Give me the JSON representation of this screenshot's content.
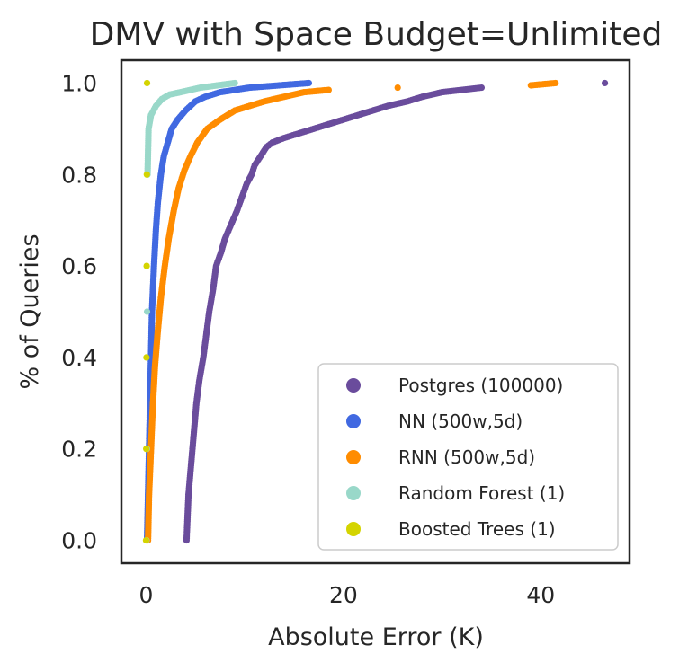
{
  "chart_data": {
    "type": "scatter",
    "title": "DMV with Space Budget=Unlimited",
    "xlabel": "Absolute Error (K)",
    "ylabel": "% of Queries",
    "xlim": [
      -2.5,
      49
    ],
    "ylim": [
      -0.05,
      1.05
    ],
    "x_ticks": [
      0,
      20,
      40
    ],
    "x_tick_labels": [
      "0",
      "20",
      "40"
    ],
    "y_ticks": [
      0.0,
      0.2,
      0.4,
      0.6,
      0.8,
      1.0
    ],
    "y_tick_labels": [
      "0.0",
      "0.2",
      "0.4",
      "0.6",
      "0.8",
      "1.0"
    ],
    "grid": false,
    "legend_position": "lower-right",
    "series": [
      {
        "name": "Postgres (100000)",
        "color": "#6a4c9c",
        "points": [
          [
            4.1,
            0.0
          ],
          [
            4.2,
            0.05
          ],
          [
            4.3,
            0.1
          ],
          [
            4.5,
            0.15
          ],
          [
            4.7,
            0.2
          ],
          [
            4.9,
            0.25
          ],
          [
            5.1,
            0.3
          ],
          [
            5.4,
            0.35
          ],
          [
            5.8,
            0.4
          ],
          [
            6.1,
            0.45
          ],
          [
            6.4,
            0.5
          ],
          [
            6.8,
            0.55
          ],
          [
            7.1,
            0.6
          ],
          [
            7.6,
            0.63
          ],
          [
            8.0,
            0.66
          ],
          [
            8.6,
            0.69
          ],
          [
            9.2,
            0.72
          ],
          [
            9.7,
            0.75
          ],
          [
            10.2,
            0.78
          ],
          [
            10.7,
            0.8
          ],
          [
            11.0,
            0.82
          ],
          [
            11.6,
            0.84
          ],
          [
            12.2,
            0.86
          ],
          [
            12.8,
            0.87
          ],
          [
            14.0,
            0.88
          ],
          [
            15.5,
            0.89
          ],
          [
            17.0,
            0.9
          ],
          [
            18.5,
            0.91
          ],
          [
            20.0,
            0.92
          ],
          [
            21.5,
            0.93
          ],
          [
            24.5,
            0.95
          ],
          [
            26.5,
            0.96
          ],
          [
            28.0,
            0.97
          ],
          [
            30.0,
            0.98
          ],
          [
            32.0,
            0.985
          ],
          [
            34.0,
            0.99
          ],
          [
            46.5,
            1.0
          ]
        ]
      },
      {
        "name": "NN (500w,5d)",
        "color": "#4169e1",
        "points": [
          [
            0.1,
            0.0
          ],
          [
            0.2,
            0.1
          ],
          [
            0.3,
            0.2
          ],
          [
            0.4,
            0.3
          ],
          [
            0.5,
            0.4
          ],
          [
            0.6,
            0.5
          ],
          [
            0.8,
            0.6
          ],
          [
            1.0,
            0.68
          ],
          [
            1.2,
            0.74
          ],
          [
            1.5,
            0.8
          ],
          [
            1.8,
            0.84
          ],
          [
            2.2,
            0.87
          ],
          [
            2.6,
            0.9
          ],
          [
            3.2,
            0.92
          ],
          [
            4.0,
            0.94
          ],
          [
            5.0,
            0.96
          ],
          [
            6.0,
            0.97
          ],
          [
            7.5,
            0.98
          ],
          [
            9.0,
            0.985
          ],
          [
            10.5,
            0.99
          ],
          [
            13.5,
            0.995
          ],
          [
            16.5,
            1.0
          ]
        ]
      },
      {
        "name": "RNN (500w,5d)",
        "color": "#ff8c00",
        "points": [
          [
            0.2,
            0.0
          ],
          [
            0.3,
            0.1
          ],
          [
            0.5,
            0.2
          ],
          [
            0.7,
            0.3
          ],
          [
            0.9,
            0.38
          ],
          [
            1.2,
            0.46
          ],
          [
            1.5,
            0.53
          ],
          [
            1.9,
            0.6
          ],
          [
            2.3,
            0.66
          ],
          [
            2.8,
            0.72
          ],
          [
            3.3,
            0.77
          ],
          [
            3.9,
            0.81
          ],
          [
            4.5,
            0.84
          ],
          [
            5.2,
            0.87
          ],
          [
            6.2,
            0.9
          ],
          [
            7.5,
            0.92
          ],
          [
            9.0,
            0.94
          ],
          [
            10.5,
            0.95
          ],
          [
            12.0,
            0.96
          ],
          [
            14.0,
            0.97
          ],
          [
            16.0,
            0.98
          ],
          [
            18.5,
            0.985
          ],
          [
            25.5,
            0.99
          ],
          [
            39.0,
            0.995
          ],
          [
            41.5,
            1.0
          ]
        ]
      },
      {
        "name": "Random Forest (1)",
        "color": "#99d8c9",
        "points": [
          [
            0.05,
            0.0
          ],
          [
            0.08,
            0.2
          ],
          [
            0.1,
            0.5
          ],
          [
            0.15,
            0.8
          ],
          [
            0.25,
            0.9
          ],
          [
            0.5,
            0.93
          ],
          [
            1.0,
            0.95
          ],
          [
            1.6,
            0.965
          ],
          [
            2.4,
            0.975
          ],
          [
            3.5,
            0.98
          ],
          [
            5.5,
            0.99
          ],
          [
            9.0,
            1.0
          ]
        ]
      },
      {
        "name": "Boosted Trees (1)",
        "color": "#d4d400",
        "points": [
          [
            0.0,
            0.0
          ],
          [
            0.02,
            0.2
          ],
          [
            0.04,
            0.4
          ],
          [
            0.06,
            0.6
          ],
          [
            0.08,
            0.8
          ],
          [
            0.1,
            1.0
          ]
        ]
      }
    ]
  }
}
